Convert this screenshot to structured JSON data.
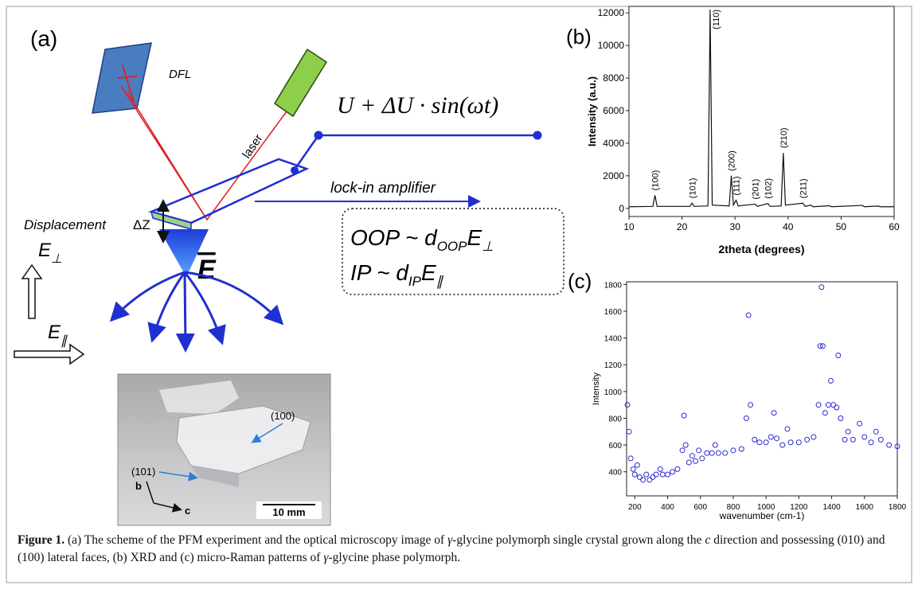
{
  "panel_a": {
    "label": "(a)",
    "dfl": "DFL",
    "laser": "laser",
    "voltage": "U + ΔU · sin(ωt)",
    "lockin": "lock-in amplifier",
    "displacement": "Displacement",
    "dz": "ΔZ",
    "field": "E",
    "oop": [
      "OOP ~ d",
      "OOP",
      "E",
      "⊥"
    ],
    "ip": [
      "IP ~ d",
      "IP",
      "E",
      "∥"
    ],
    "e_perp": [
      "E",
      "⊥"
    ],
    "e_par": [
      "E",
      "∥"
    ],
    "photo": {
      "face_100": "(100)",
      "face_101": "(101)",
      "axis_b": "b",
      "axis_c": "c",
      "scale": "10 mm"
    }
  },
  "chart_data": [
    {
      "type": "line",
      "panel_label": "(b)",
      "x_label": "2theta (degrees)",
      "y_label": "Intensity (a.u.)",
      "x": [
        10,
        14.5,
        14.9,
        15.3,
        21.5,
        21.9,
        22.3,
        24.9,
        25.3,
        25.7,
        28.9,
        29.3,
        29.7,
        30.2,
        30.6,
        33.8,
        34.2,
        36.2,
        36.6,
        38.7,
        39.1,
        39.5,
        42.8,
        43.2,
        44.3,
        44.7,
        47.8,
        48.2,
        54,
        54.4,
        57,
        57.4,
        60
      ],
      "series": [
        {
          "color": "#111111",
          "values": [
            100,
            120,
            800,
            120,
            120,
            320,
            120,
            150,
            12200,
            200,
            150,
            2000,
            200,
            500,
            150,
            260,
            120,
            300,
            120,
            150,
            3400,
            200,
            320,
            120,
            200,
            100,
            160,
            100,
            180,
            100,
            140,
            100,
            100
          ]
        }
      ],
      "xlim": [
        10,
        60
      ],
      "ylim": [
        -500,
        12400
      ],
      "xticks": [
        10,
        20,
        30,
        40,
        50,
        60
      ],
      "yticks": [
        0,
        2000,
        4000,
        6000,
        8000,
        10000,
        12000
      ],
      "peak_labels": [
        {
          "label": "(100)",
          "x": 14.9
        },
        {
          "label": "(101)",
          "x": 21.9
        },
        {
          "label": "(110)",
          "x": 25.3
        },
        {
          "label": "(200)",
          "x": 29.3
        },
        {
          "label": "(111)",
          "x": 30.2
        },
        {
          "label": "(201)",
          "x": 33.8
        },
        {
          "label": "(102)",
          "x": 36.2
        },
        {
          "label": "(210)",
          "x": 39.1
        },
        {
          "label": "(211)",
          "x": 42.8
        }
      ]
    },
    {
      "type": "scatter",
      "panel_label": "(c)",
      "x_label": "wavenumber (cm-1)",
      "y_label": "Intensity",
      "x": [
        155,
        165,
        175,
        190,
        200,
        215,
        230,
        250,
        270,
        290,
        310,
        330,
        355,
        370,
        400,
        430,
        460,
        490,
        500,
        510,
        530,
        550,
        570,
        590,
        610,
        640,
        670,
        690,
        710,
        750,
        800,
        850,
        880,
        893,
        905,
        930,
        960,
        1000,
        1030,
        1048,
        1065,
        1100,
        1130,
        1150,
        1200,
        1250,
        1290,
        1320,
        1330,
        1338,
        1346,
        1360,
        1380,
        1395,
        1410,
        1430,
        1440,
        1455,
        1480,
        1500,
        1530,
        1570,
        1600,
        1640,
        1670,
        1700,
        1750,
        1800
      ],
      "series": [
        {
          "color": "#2b2bd6",
          "values": [
            900,
            700,
            500,
            420,
            380,
            450,
            360,
            340,
            380,
            340,
            360,
            380,
            420,
            380,
            380,
            400,
            420,
            560,
            820,
            600,
            470,
            520,
            480,
            560,
            500,
            540,
            540,
            600,
            540,
            540,
            560,
            570,
            800,
            1570,
            900,
            640,
            620,
            620,
            660,
            840,
            650,
            600,
            720,
            620,
            620,
            640,
            660,
            900,
            1340,
            1780,
            1340,
            840,
            900,
            1080,
            900,
            880,
            1270,
            800,
            640,
            700,
            640,
            760,
            660,
            620,
            700,
            640,
            600,
            590
          ]
        }
      ],
      "xlim": [
        150,
        1800
      ],
      "ylim": [
        220,
        1820
      ],
      "xticks": [
        200,
        400,
        600,
        800,
        1000,
        1200,
        1400,
        1600,
        1800
      ],
      "yticks": [
        400,
        600,
        800,
        1000,
        1200,
        1400,
        1600,
        1800
      ]
    }
  ],
  "caption": {
    "label": "Figure 1.",
    "segments": [
      " (a) The scheme of the PFM experiment and the optical microscopy image of ",
      "γ",
      "-glycine polymorph single crystal grown along the ",
      "c",
      " direction and possessing (010) and (100) lateral faces, (b) XRD and (c) micro-Raman patterns of ",
      "γ",
      "-glycine phase polymorph."
    ]
  }
}
